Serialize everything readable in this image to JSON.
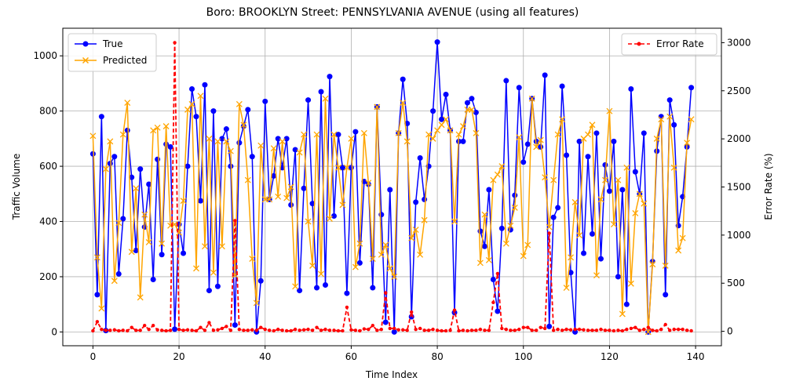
{
  "chart_data": {
    "type": "line",
    "title": "Boro: BROOKLYN Street: PENNSYLVANIA AVENUE (using all features)",
    "xlabel": "Time Index",
    "ylabel": "Traffic Volume",
    "y2label": "Error Rate (%)",
    "xlim": [
      -7,
      146
    ],
    "ylim": [
      -50,
      1100
    ],
    "y2lim": [
      -150,
      3150
    ],
    "xticks": [
      0,
      20,
      40,
      60,
      80,
      100,
      120,
      140
    ],
    "yticks": [
      0,
      200,
      400,
      600,
      800,
      1000
    ],
    "y2ticks": [
      0,
      500,
      1000,
      1500,
      2000,
      2500,
      3000
    ],
    "grid": true,
    "legend_left": "upper-left",
    "legend_right": "upper-right",
    "colors": {
      "true": "#0000ff",
      "predicted": "#ffa500",
      "error": "#ff0000"
    },
    "series": [
      {
        "name": "True",
        "axis": "left",
        "values": [
          645,
          135,
          780,
          5,
          610,
          635,
          210,
          410,
          730,
          560,
          295,
          590,
          380,
          535,
          190,
          625,
          280,
          680,
          670,
          10,
          390,
          285,
          600,
          880,
          780,
          475,
          895,
          150,
          800,
          165,
          700,
          735,
          600,
          25,
          685,
          745,
          805,
          635,
          0,
          185,
          835,
          480,
          565,
          700,
          595,
          700,
          460,
          660,
          150,
          520,
          840,
          465,
          160,
          870,
          170,
          925,
          420,
          715,
          595,
          140,
          595,
          725,
          250,
          545,
          535,
          160,
          815,
          425,
          35,
          515,
          0,
          720,
          915,
          755,
          55,
          470,
          630,
          480,
          600,
          800,
          1050,
          770,
          860,
          730,
          70,
          690,
          690,
          830,
          845,
          795,
          365,
          310,
          515,
          190,
          75,
          375,
          910,
          370,
          495,
          885,
          615,
          680,
          845,
          690,
          670,
          930,
          20,
          415,
          450,
          890,
          640,
          215,
          0,
          690,
          285,
          635,
          355,
          720,
          265,
          605,
          510,
          690,
          200,
          515,
          100,
          880,
          580,
          500,
          720,
          0,
          255,
          655,
          780,
          135,
          840,
          750,
          385,
          490,
          670,
          885
        ],
        "marker": "circle"
      },
      {
        "name": "Predicted",
        "axis": "left",
        "values": [
          710,
          270,
          85,
          590,
          690,
          185,
          395,
          715,
          830,
          290,
          520,
          125,
          425,
          325,
          730,
          740,
          320,
          745,
          385,
          390,
          360,
          475,
          805,
          825,
          230,
          855,
          310,
          700,
          215,
          690,
          310,
          690,
          655,
          205,
          825,
          750,
          550,
          265,
          105,
          675,
          480,
          480,
          665,
          490,
          690,
          485,
          525,
          165,
          650,
          715,
          400,
          240,
          715,
          210,
          845,
          410,
          715,
          595,
          460,
          595,
          700,
          235,
          320,
          720,
          540,
          265,
          815,
          280,
          315,
          230,
          200,
          720,
          830,
          690,
          340,
          370,
          280,
          405,
          715,
          700,
          730,
          750,
          770,
          730,
          400,
          715,
          745,
          805,
          805,
          720,
          250,
          425,
          260,
          550,
          570,
          600,
          320,
          385,
          450,
          705,
          275,
          315,
          845,
          670,
          695,
          560,
          380,
          550,
          715,
          770,
          160,
          270,
          470,
          350,
          700,
          715,
          750,
          205,
          480,
          550,
          800,
          390,
          550,
          65,
          595,
          175,
          430,
          500,
          465,
          0,
          245,
          700,
          770,
          240,
          780,
          595,
          295,
          340,
          685,
          770
        ],
        "marker": "x"
      },
      {
        "name": "Error Rate",
        "axis": "right",
        "values": [
          5,
          100,
          20,
          10,
          10,
          15,
          5,
          10,
          5,
          40,
          10,
          10,
          60,
          20,
          60,
          15,
          10,
          5,
          10,
          3000,
          20,
          10,
          15,
          10,
          5,
          40,
          10,
          90,
          10,
          15,
          30,
          50,
          10,
          1150,
          20,
          10,
          10,
          15,
          10,
          40,
          20,
          10,
          5,
          20,
          10,
          5,
          5,
          20,
          10,
          15,
          20,
          10,
          40,
          10,
          20,
          10,
          10,
          5,
          5,
          250,
          15,
          10,
          5,
          25,
          20,
          60,
          10,
          20,
          400,
          30,
          30,
          15,
          15,
          10,
          200,
          20,
          30,
          10,
          10,
          20,
          10,
          5,
          5,
          10,
          220,
          5,
          10,
          5,
          10,
          10,
          20,
          10,
          10,
          300,
          600,
          30,
          20,
          10,
          10,
          20,
          40,
          40,
          10,
          10,
          40,
          30,
          1020,
          10,
          20,
          10,
          20,
          15,
          20,
          20,
          15,
          10,
          10,
          10,
          20,
          10,
          10,
          5,
          10,
          5,
          20,
          30,
          40,
          10,
          20,
          40,
          10,
          5,
          20,
          70,
          10,
          20,
          20,
          20,
          10,
          5
        ],
        "marker": "circle"
      }
    ]
  }
}
